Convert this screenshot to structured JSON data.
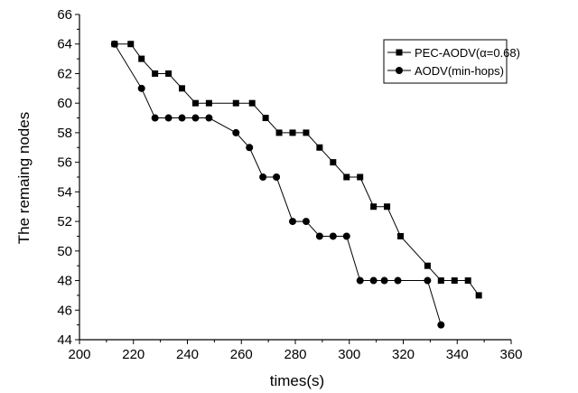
{
  "chart_data": {
    "type": "line",
    "xlabel": "times(s)",
    "ylabel": "The remaing nodes",
    "xlim": [
      200,
      360
    ],
    "ylim": [
      44,
      66
    ],
    "x_ticks": [
      "200",
      "220",
      "240",
      "260",
      "280",
      "300",
      "320",
      "340",
      "360"
    ],
    "y_ticks": [
      "44",
      "46",
      "48",
      "50",
      "52",
      "54",
      "56",
      "58",
      "60",
      "62",
      "64",
      "66"
    ],
    "legend_position": "top-right",
    "grid": false,
    "series": [
      {
        "name": "PEC-AODV(α=0.68)",
        "marker": "square",
        "x": [
          213,
          219,
          223,
          228,
          233,
          238,
          243,
          248,
          258,
          264,
          269,
          274,
          279,
          284,
          289,
          294,
          299,
          304,
          309,
          314,
          319,
          329,
          334,
          339,
          344,
          348
        ],
        "y": [
          64,
          64,
          63,
          62,
          62,
          61,
          60,
          60,
          60,
          60,
          59,
          58,
          58,
          58,
          57,
          56,
          55,
          55,
          53,
          53,
          51,
          49,
          48,
          48,
          48,
          47
        ]
      },
      {
        "name": "AODV(min-hops)",
        "marker": "circle",
        "x": [
          213,
          223,
          228,
          233,
          238,
          243,
          248,
          258,
          263,
          268,
          273,
          279,
          284,
          289,
          294,
          299,
          304,
          309,
          313,
          318,
          329,
          334
        ],
        "y": [
          64,
          61,
          59,
          59,
          59,
          59,
          59,
          58,
          57,
          55,
          55,
          52,
          52,
          51,
          51,
          51,
          48,
          48,
          48,
          48,
          48,
          45
        ]
      }
    ]
  }
}
